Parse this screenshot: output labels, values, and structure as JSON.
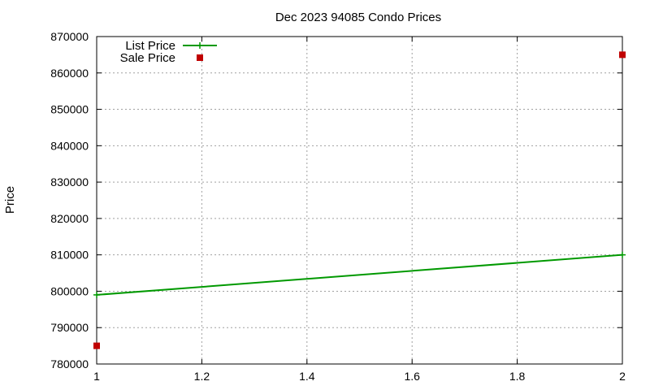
{
  "chart_data": {
    "type": "line",
    "title": "Dec 2023 94085 Condo Prices",
    "xlabel": "",
    "ylabel": "Price",
    "xlim": [
      1,
      2
    ],
    "ylim": [
      780000,
      870000
    ],
    "x_ticks": [
      1,
      1.2,
      1.4,
      1.6,
      1.8,
      2
    ],
    "x_tick_labels": [
      "1",
      "1.2",
      "1.4",
      "1.6",
      "1.8",
      "2"
    ],
    "y_ticks": [
      780000,
      790000,
      800000,
      810000,
      820000,
      830000,
      840000,
      850000,
      860000,
      870000
    ],
    "y_tick_labels": [
      "780000",
      "790000",
      "800000",
      "810000",
      "820000",
      "830000",
      "840000",
      "850000",
      "860000",
      "870000"
    ],
    "grid": true,
    "legend_position": "top-left",
    "series": [
      {
        "name": "List Price",
        "style": "line-with-points",
        "color": "#009900",
        "points": [
          {
            "x": 1,
            "y": 799000
          },
          {
            "x": 2,
            "y": 810000
          }
        ]
      },
      {
        "name": "Sale Price",
        "style": "points",
        "color": "#c00000",
        "points": [
          {
            "x": 1,
            "y": 785000
          },
          {
            "x": 2,
            "y": 865000
          }
        ]
      }
    ]
  }
}
